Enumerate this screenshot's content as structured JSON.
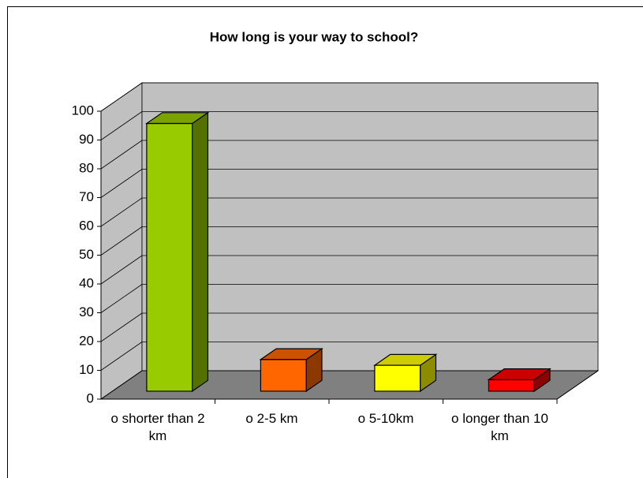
{
  "chart_data": {
    "type": "bar3d",
    "title": "How long is your way to school?",
    "categories": [
      "o shorter than 2 km",
      "o 2-5 km",
      "o 5-10km",
      "o longer than 10 km"
    ],
    "values": [
      93,
      11,
      9,
      4
    ],
    "colors": [
      "#99cc00",
      "#ff6600",
      "#ffff00",
      "#ff0000"
    ],
    "ylim": [
      0,
      100
    ],
    "yticks": [
      0,
      10,
      20,
      30,
      40,
      50,
      60,
      70,
      80,
      90,
      100
    ],
    "grid": true
  }
}
